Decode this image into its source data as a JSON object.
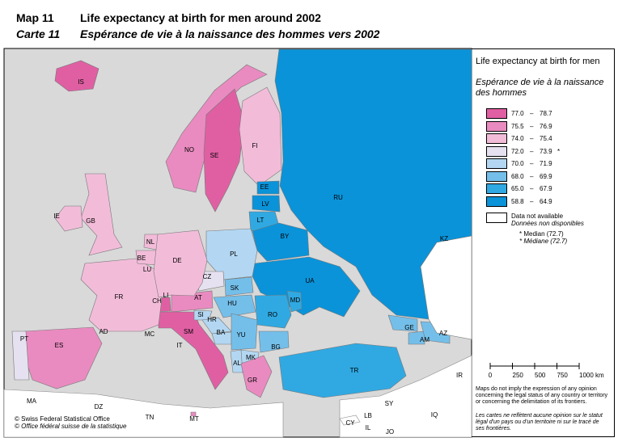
{
  "header": {
    "number_en": "Map 11",
    "title_en": "Life expectancy at birth for men around 2002",
    "number_fr": "Carte 11",
    "title_fr": "Espérance de vie à la naissance des hommes vers 2002"
  },
  "legend": {
    "title_en": "Life expectancy at birth for men",
    "title_fr": "Espérance de vie à la naissance des hommes",
    "classes": [
      {
        "from": "77.0",
        "to": "78.7",
        "color": "#e05fa3"
      },
      {
        "from": "75.5",
        "to": "76.9",
        "color": "#e98bc0"
      },
      {
        "from": "74.0",
        "to": "75.4",
        "color": "#f2bcd9"
      },
      {
        "from": "72.0",
        "to": "73.9",
        "note": "*",
        "color": "#e6e1f0"
      },
      {
        "from": "70.0",
        "to": "71.9",
        "color": "#b3d7f2"
      },
      {
        "from": "68.0",
        "to": "69.9",
        "color": "#74bfea"
      },
      {
        "from": "65.0",
        "to": "67.9",
        "color": "#30a9e2"
      },
      {
        "from": "58.8",
        "to": "64.9",
        "color": "#0a93d9"
      }
    ],
    "na_en": "Data not available",
    "na_fr": "Données non disponibles",
    "median_en": "* Median (72.7)",
    "median_fr": "* Médiane (72.7)"
  },
  "scale": [
    "0",
    "250",
    "500",
    "750",
    "1000 km"
  ],
  "disclaimer_en": "Maps do not imply the expression of any opinion concerning the legal status of any country or territory or concerning the delimitation of its frontiers.",
  "disclaimer_fr": "Les cartes ne reflètent aucune opinion sur le statut légal d'un pays ou d'un territoire ni sur le tracé de ses frontières.",
  "copyright_en": "© Swiss Federal Statistical Office",
  "copyright_fr": "© Office fédéral suisse de la statistique",
  "countries": [
    {
      "label": "IS",
      "class": 0
    },
    {
      "label": "NO",
      "class": 1
    },
    {
      "label": "SE",
      "class": 0
    },
    {
      "label": "FI",
      "class": 2
    },
    {
      "label": "EE",
      "class": 7
    },
    {
      "label": "LV",
      "class": 7
    },
    {
      "label": "LT",
      "class": 6
    },
    {
      "label": "RU",
      "class": 7
    },
    {
      "label": "BY",
      "class": 7
    },
    {
      "label": "UA",
      "class": 7
    },
    {
      "label": "MD",
      "class": 6
    },
    {
      "label": "RO",
      "class": 6
    },
    {
      "label": "BG",
      "class": 5
    },
    {
      "label": "PL",
      "class": 4
    },
    {
      "label": "CZ",
      "class": 3
    },
    {
      "label": "SK",
      "class": 5
    },
    {
      "label": "HU",
      "class": 5
    },
    {
      "label": "AT",
      "class": 1
    },
    {
      "label": "CH",
      "class": 0
    },
    {
      "label": "LI",
      "class": 0
    },
    {
      "label": "IT",
      "class": 0
    },
    {
      "label": "SM",
      "class": null
    },
    {
      "label": "MC",
      "class": null
    },
    {
      "label": "AD",
      "class": null
    },
    {
      "label": "SI",
      "class": 4
    },
    {
      "label": "HR",
      "class": 4
    },
    {
      "label": "BA",
      "class": 4
    },
    {
      "label": "YU",
      "class": 5
    },
    {
      "label": "MK",
      "class": 4
    },
    {
      "label": "AL",
      "class": 4
    },
    {
      "label": "GR",
      "class": 1
    },
    {
      "label": "TR",
      "class": 6
    },
    {
      "label": "GE",
      "class": 5
    },
    {
      "label": "AM",
      "class": 5
    },
    {
      "label": "AZ",
      "class": 5
    },
    {
      "label": "KZ",
      "class": null
    },
    {
      "label": "ES",
      "class": 1
    },
    {
      "label": "PT",
      "class": 3
    },
    {
      "label": "FR",
      "class": 2
    },
    {
      "label": "BE",
      "class": 2
    },
    {
      "label": "NL",
      "class": 2
    },
    {
      "label": "LU",
      "class": 2
    },
    {
      "label": "DE",
      "class": 2
    },
    {
      "label": "GB",
      "class": 2
    },
    {
      "label": "IE",
      "class": 2
    },
    {
      "label": "MT",
      "class": 1
    },
    {
      "label": "MA",
      "class": null
    },
    {
      "label": "DZ",
      "class": null
    },
    {
      "label": "TN",
      "class": null
    },
    {
      "label": "CY",
      "class": null
    },
    {
      "label": "LB",
      "class": null
    },
    {
      "label": "IL",
      "class": null
    },
    {
      "label": "SY",
      "class": null
    },
    {
      "label": "JO",
      "class": null
    },
    {
      "label": "IQ",
      "class": null
    },
    {
      "label": "IR",
      "class": null
    }
  ]
}
